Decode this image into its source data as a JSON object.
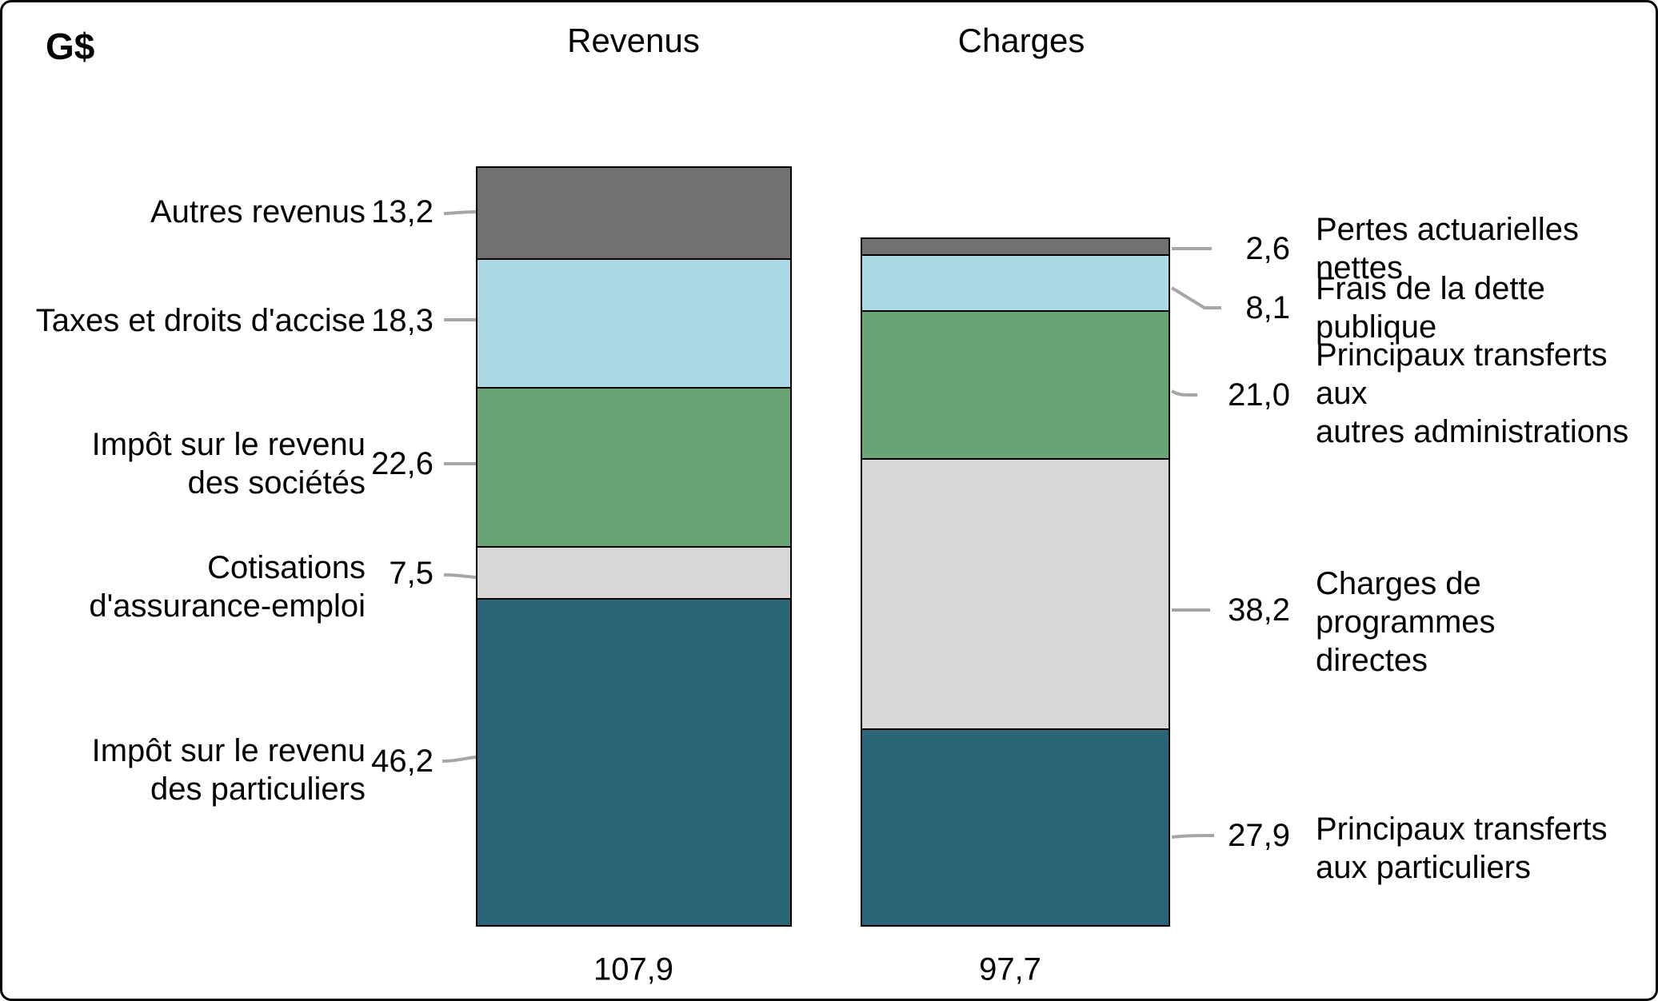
{
  "header": {
    "unit": "G$"
  },
  "chart_data": {
    "type": "bar",
    "subtype": "stacked",
    "orientation": "vertical",
    "unit": "G$",
    "legend": "none",
    "axes": "none (values shown as data labels with leader lines)",
    "bars": [
      {
        "title": "Revenus",
        "total_display": "107,9",
        "total_value": 107.9,
        "segments_top_to_bottom": "listed top to bottom",
        "segments": [
          {
            "id": "autres-revenus",
            "label": "Autres revenus",
            "value": 13.2,
            "display": "13,2",
            "color": "#727070"
          },
          {
            "id": "taxes-droits-accise",
            "label": "Taxes et droits d'accise",
            "value": 18.3,
            "display": "18,3",
            "color": "#ADD8E6"
          },
          {
            "id": "impot-societes",
            "label": "Impôt sur le revenu des sociétés",
            "value": 22.6,
            "display": "22,6",
            "color": "#6AA376"
          },
          {
            "id": "cotisations-assurance-emploi",
            "label": "Cotisations d'assurance-emploi",
            "value": 7.5,
            "display": "7,5",
            "color": "#D8D8D8"
          },
          {
            "id": "impot-particuliers",
            "label": "Impôt sur le revenu des particuliers",
            "value": 46.2,
            "display": "46,2",
            "color": "#2A6678"
          }
        ]
      },
      {
        "title": "Charges",
        "total_display": "97,7",
        "total_value": 97.7,
        "segments": [
          {
            "id": "pertes-actuarielles",
            "label": "Pertes actuarielles nettes",
            "value": 2.6,
            "display": "2,6",
            "color": "#727070"
          },
          {
            "id": "frais-dette-publique",
            "label": "Frais de la dette publique",
            "value": 8.1,
            "display": "8,1",
            "color": "#ADD8E6"
          },
          {
            "id": "transferts-administrations",
            "label": "Principaux transferts aux autres administrations",
            "value": 21.0,
            "display": "21,0",
            "color": "#6AA376"
          },
          {
            "id": "charges-programmes-directes",
            "label": "Charges de programmes directes",
            "value": 38.2,
            "display": "38,2",
            "color": "#D8D8D8"
          },
          {
            "id": "transferts-particuliers",
            "label": "Principaux transferts aux particuliers",
            "value": 27.9,
            "display": "27,9",
            "color": "#2A6678"
          }
        ]
      }
    ],
    "leader_line_color": "#A6A6A6",
    "segment_border_color": "#000000"
  },
  "left_annotations": [
    {
      "text": "Autres revenus",
      "value": "13,2"
    },
    {
      "text": "Taxes et droits d'accise",
      "value": "18,3"
    },
    {
      "text": "Impôt sur le revenu\ndes sociétés",
      "value": "22,6"
    },
    {
      "text": "Cotisations\nd'assurance-emploi",
      "value": "7,5"
    },
    {
      "text": "Impôt sur le revenu\ndes particuliers",
      "value": "46,2"
    }
  ],
  "right_annotations": [
    {
      "value": "2,6",
      "text": "Pertes actuarielles nettes"
    },
    {
      "value": "8,1",
      "text": "Frais de la dette publique"
    },
    {
      "value": "21,0",
      "text": "Principaux transferts aux\nautres administrations"
    },
    {
      "value": "38,2",
      "text": "Charges de programmes\ndirectes"
    },
    {
      "value": "27,9",
      "text": "Principaux transferts\naux particuliers"
    }
  ]
}
